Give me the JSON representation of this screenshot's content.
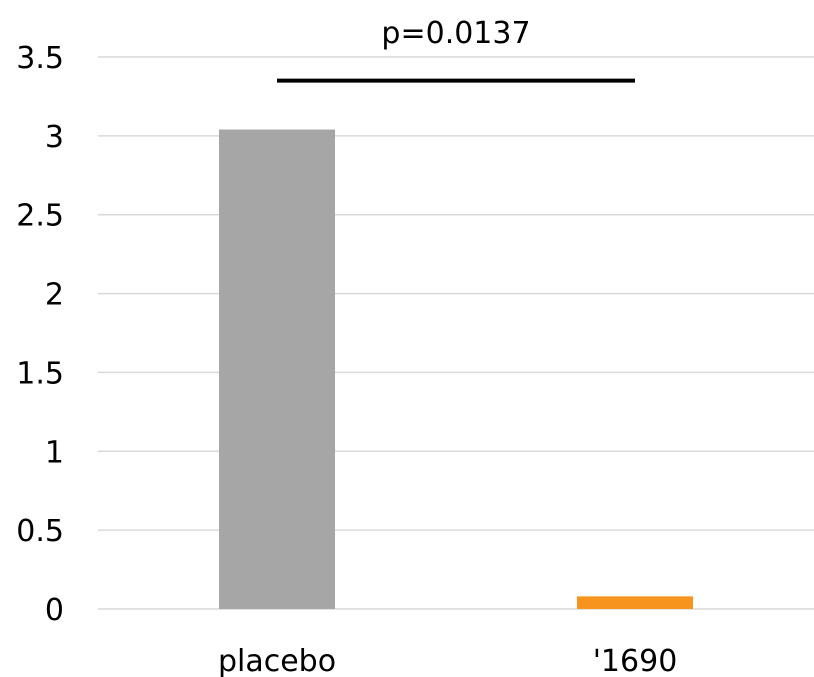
{
  "chart_data": {
    "type": "bar",
    "categories": [
      "placebo",
      "'1690"
    ],
    "values": [
      3.04,
      0.08
    ],
    "colors": [
      "#a6a6a6",
      "#f7941d"
    ],
    "ylim": [
      0,
      3.5
    ],
    "yticks": [
      "0",
      "0.5",
      "1",
      "1.5",
      "2",
      "2.5",
      "3",
      "3.5"
    ],
    "grid": true,
    "annotation": {
      "text": "p=0.0137",
      "y": 3.35
    }
  }
}
